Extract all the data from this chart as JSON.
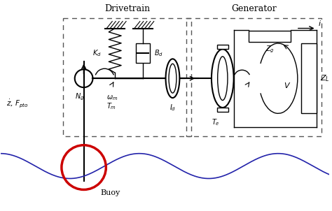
{
  "bg_color": "#ffffff",
  "buoy_color": "#cc0000",
  "wave_color": "#2222aa",
  "box_color": "#555555",
  "black": "#000000",
  "drivetrain_label": "Drivetrain",
  "generator_label": "Generator",
  "buoy_label": "Buoy",
  "zdot_label": "$\\dot{z}$, $F_{pto}$",
  "Ng_label": "$N_g$",
  "omega_label": "$\\omega_m$",
  "Tm_label": "$T_m$",
  "Id_label": "$I_d$",
  "Te_label": "$T_e$",
  "Kd_label": "$K_d$",
  "Bd_label": "$B_d$",
  "Zg_label": "$Z_g$",
  "V_label": "$V$",
  "ZL_label": "$Z_L$",
  "i_label": "$i$"
}
